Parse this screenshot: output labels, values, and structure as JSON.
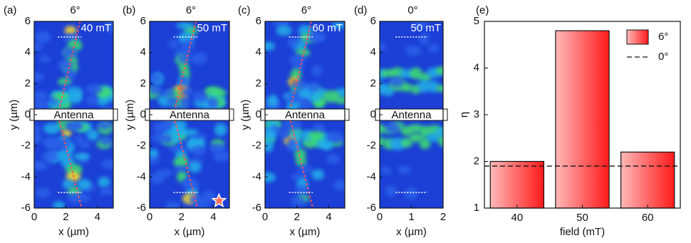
{
  "chart_data": [
    {
      "type": "heatmap",
      "panel": "(a)",
      "title": "6°",
      "annotation": "40 mT",
      "antenna": "Antenna",
      "xlabel": "x (µm)",
      "ylabel": "y (µm)",
      "xlim": [
        0,
        5
      ],
      "ylim": [
        -6,
        6
      ],
      "xticks": [
        0,
        2,
        4
      ],
      "yticks": [
        -6,
        -4,
        -2,
        0,
        2,
        4,
        6
      ]
    },
    {
      "type": "heatmap",
      "panel": "(b)",
      "title": "6°",
      "annotation": "50 mT",
      "antenna": "Antenna",
      "xlabel": "x (µm)",
      "ylabel": "y (µm)",
      "xlim": [
        0,
        5
      ],
      "ylim": [
        -6,
        6
      ],
      "xticks": [
        0,
        2,
        4
      ],
      "yticks": [
        -6,
        -4,
        -2,
        0,
        2,
        4,
        6
      ]
    },
    {
      "type": "heatmap",
      "panel": "(c)",
      "title": "6°",
      "annotation": "60 mT",
      "antenna": "Antenna",
      "xlabel": "x (µm)",
      "ylabel": "y (µm)",
      "xlim": [
        0,
        5
      ],
      "ylim": [
        -6,
        6
      ],
      "xticks": [
        0,
        2,
        4
      ],
      "yticks": [
        -6,
        -4,
        -2,
        0,
        2,
        4,
        6
      ]
    },
    {
      "type": "heatmap",
      "panel": "(d)",
      "title": "0°",
      "annotation": "50 mT",
      "antenna": "Antenna",
      "xlabel": "x (µm)",
      "xlim": [
        0,
        2
      ],
      "ylim": [
        -6,
        6
      ],
      "xticks": [
        0,
        1,
        2
      ],
      "yticks": [
        -6,
        -4,
        -2,
        0,
        2,
        4,
        6
      ]
    },
    {
      "type": "bar",
      "panel": "(e)",
      "xlabel": "field (mT)",
      "ylabel": "η",
      "categories": [
        "40",
        "50",
        "60"
      ],
      "series": [
        {
          "name": "6°",
          "color": "#ff1a1a",
          "values": [
            2.0,
            4.8,
            2.2
          ]
        }
      ],
      "reference": {
        "name": "0°",
        "value": 1.9
      },
      "ylim": [
        1,
        5
      ],
      "yticks": [
        1,
        2,
        3,
        4,
        5
      ],
      "legend": "upper right"
    }
  ]
}
